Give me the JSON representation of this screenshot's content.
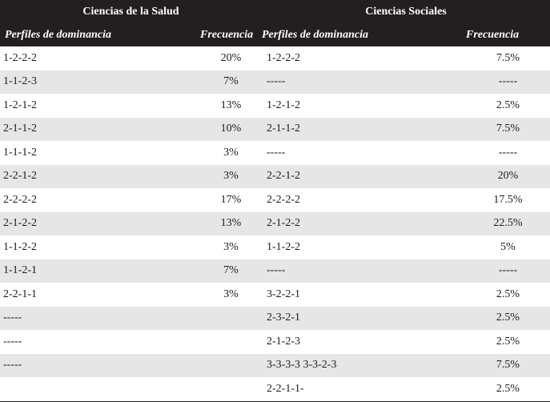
{
  "header": {
    "group_salud": "Ciencias de la Salud",
    "group_sociales": "Ciencias Sociales",
    "col_perfiles_salud": "Perfiles de dominancia",
    "col_frecuencia_salud": "Frecuencia",
    "col_perfiles_sociales": "Perfiles de dominancia",
    "col_frecuencia_sociales": "Frecuencia"
  },
  "rows": [
    {
      "salud_perfil": "1-2-2-2",
      "salud_freq": "20%",
      "soc_perfil": "1-2-2-2",
      "soc_freq": "7.5%"
    },
    {
      "salud_perfil": "1-1-2-3",
      "salud_freq": "7%",
      "soc_perfil": "-----",
      "soc_freq": "-----"
    },
    {
      "salud_perfil": "1-2-1-2",
      "salud_freq": "13%",
      "soc_perfil": "1-2-1-2",
      "soc_freq": "2.5%"
    },
    {
      "salud_perfil": "2-1-1-2",
      "salud_freq": "10%",
      "soc_perfil": "2-1-1-2",
      "soc_freq": "7.5%"
    },
    {
      "salud_perfil": "1-1-1-2",
      "salud_freq": "3%",
      "soc_perfil": "-----",
      "soc_freq": "-----"
    },
    {
      "salud_perfil": "2-2-1-2",
      "salud_freq": "3%",
      "soc_perfil": "2-2-1-2",
      "soc_freq": "20%"
    },
    {
      "salud_perfil": "2-2-2-2",
      "salud_freq": "17%",
      "soc_perfil": "2-2-2-2",
      "soc_freq": "17.5%"
    },
    {
      "salud_perfil": "2-1-2-2",
      "salud_freq": "13%",
      "soc_perfil": "2-1-2-2",
      "soc_freq": "22.5%"
    },
    {
      "salud_perfil": "1-1-2-2",
      "salud_freq": "3%",
      "soc_perfil": "1-1-2-2",
      "soc_freq": "5%"
    },
    {
      "salud_perfil": "1-1-2-1",
      "salud_freq": "7%",
      "soc_perfil": "-----",
      "soc_freq": "-----"
    },
    {
      "salud_perfil": "2-2-1-1",
      "salud_freq": "3%",
      "soc_perfil": "3-2-2-1",
      "soc_freq": "2.5%"
    },
    {
      "salud_perfil": "-----",
      "salud_freq": "",
      "soc_perfil": "2-3-2-1",
      "soc_freq": "2.5%"
    },
    {
      "salud_perfil": "-----",
      "salud_freq": "",
      "soc_perfil": "2-1-2-3",
      "soc_freq": "2.5%"
    },
    {
      "salud_perfil": "-----",
      "salud_freq": "",
      "soc_perfil": "3-3-3-3  3-3-2-3",
      "soc_freq": "7.5%"
    },
    {
      "salud_perfil": "",
      "salud_freq": "",
      "soc_perfil": "2-2-1-1-",
      "soc_freq": "2.5%"
    }
  ]
}
